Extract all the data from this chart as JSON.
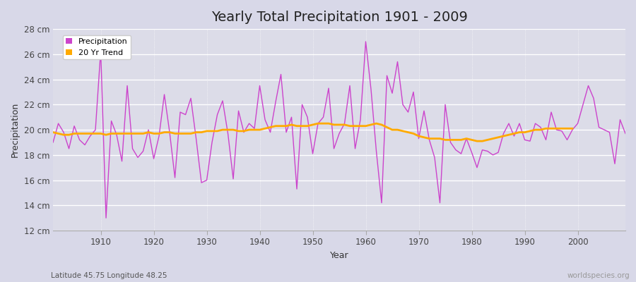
{
  "title": "Yearly Total Precipitation 1901 - 2009",
  "xlabel": "Year",
  "ylabel": "Precipitation",
  "subtitle": "Latitude 45.75 Longitude 48.25",
  "watermark": "worldspecies.org",
  "ylim": [
    12,
    28
  ],
  "yticks": [
    12,
    14,
    16,
    18,
    20,
    22,
    24,
    26,
    28
  ],
  "ytick_labels": [
    "12 cm",
    "14 cm",
    "16 cm",
    "18 cm",
    "20 cm",
    "22 cm",
    "24 cm",
    "26 cm",
    "28 cm"
  ],
  "xlim": [
    1901,
    2009
  ],
  "precip_color": "#cc44cc",
  "trend_color": "#ffaa00",
  "bg_color": "#d8d8e8",
  "plot_bg_color": "#dcdce8",
  "grid_color": "#ffffff",
  "title_fontsize": 14,
  "years": [
    1901,
    1902,
    1903,
    1904,
    1905,
    1906,
    1907,
    1908,
    1909,
    1910,
    1911,
    1912,
    1913,
    1914,
    1915,
    1916,
    1917,
    1918,
    1919,
    1920,
    1921,
    1922,
    1923,
    1924,
    1925,
    1926,
    1927,
    1928,
    1929,
    1930,
    1931,
    1932,
    1933,
    1934,
    1935,
    1936,
    1937,
    1938,
    1939,
    1940,
    1941,
    1942,
    1943,
    1944,
    1945,
    1946,
    1947,
    1948,
    1949,
    1950,
    1951,
    1952,
    1953,
    1954,
    1955,
    1956,
    1957,
    1958,
    1959,
    1960,
    1961,
    1962,
    1963,
    1964,
    1965,
    1966,
    1967,
    1968,
    1969,
    1970,
    1971,
    1972,
    1973,
    1974,
    1975,
    1976,
    1977,
    1978,
    1979,
    1980,
    1981,
    1982,
    1983,
    1984,
    1985,
    1986,
    1987,
    1988,
    1989,
    1990,
    1991,
    1992,
    1993,
    1994,
    1995,
    1996,
    1997,
    1998,
    1999,
    2000,
    2001,
    2002,
    2003,
    2004,
    2005,
    2006,
    2007,
    2008,
    2009
  ],
  "precip": [
    19.0,
    20.5,
    19.8,
    18.5,
    20.3,
    19.2,
    18.8,
    19.5,
    20.0,
    26.3,
    13.0,
    20.7,
    19.6,
    17.5,
    23.5,
    18.5,
    17.8,
    18.3,
    20.0,
    17.7,
    19.5,
    22.8,
    19.8,
    16.2,
    21.4,
    21.2,
    22.5,
    19.3,
    15.8,
    16.0,
    19.0,
    21.2,
    22.3,
    19.7,
    16.1,
    21.5,
    19.8,
    20.5,
    20.1,
    23.5,
    20.8,
    19.8,
    22.2,
    24.4,
    19.8,
    21.0,
    15.3,
    22.0,
    21.0,
    18.1,
    20.5,
    21.0,
    23.3,
    18.5,
    19.7,
    20.5,
    23.5,
    18.5,
    20.8,
    27.0,
    23.2,
    18.3,
    14.2,
    24.3,
    22.9,
    25.4,
    22.0,
    21.4,
    23.0,
    19.3,
    21.5,
    19.2,
    17.8,
    14.2,
    22.0,
    19.0,
    18.4,
    18.1,
    19.3,
    18.2,
    17.0,
    18.4,
    18.3,
    18.0,
    18.2,
    19.7,
    20.5,
    19.5,
    20.5,
    19.2,
    19.1,
    20.5,
    20.2,
    19.2,
    21.4,
    20.0,
    19.9,
    19.2,
    20.0,
    20.5,
    22.0,
    23.5,
    22.5,
    20.2,
    20.0,
    19.8,
    17.3,
    20.8,
    19.7
  ],
  "trend": [
    19.8,
    19.7,
    19.6,
    19.6,
    19.7,
    19.7,
    19.7,
    19.7,
    19.7,
    19.7,
    19.6,
    19.7,
    19.7,
    19.7,
    19.7,
    19.7,
    19.7,
    19.7,
    19.8,
    19.7,
    19.7,
    19.8,
    19.8,
    19.7,
    19.7,
    19.7,
    19.7,
    19.8,
    19.8,
    19.9,
    19.9,
    19.9,
    20.0,
    20.0,
    20.0,
    19.9,
    19.9,
    20.0,
    20.0,
    20.0,
    20.1,
    20.2,
    20.3,
    20.3,
    20.3,
    20.4,
    20.3,
    20.3,
    20.3,
    20.4,
    20.5,
    20.5,
    20.5,
    20.4,
    20.4,
    20.4,
    20.3,
    20.3,
    20.3,
    20.3,
    20.4,
    20.5,
    20.4,
    20.2,
    20.0,
    20.0,
    19.9,
    19.8,
    19.7,
    19.5,
    19.4,
    19.3,
    19.3,
    19.3,
    19.2,
    19.2,
    19.2,
    19.2,
    19.3,
    19.2,
    19.1,
    19.1,
    19.2,
    19.3,
    19.4,
    19.5,
    19.6,
    19.7,
    19.8,
    19.8,
    19.9,
    20.0,
    20.0,
    20.1,
    20.1,
    20.1,
    20.1,
    20.1,
    20.1
  ]
}
